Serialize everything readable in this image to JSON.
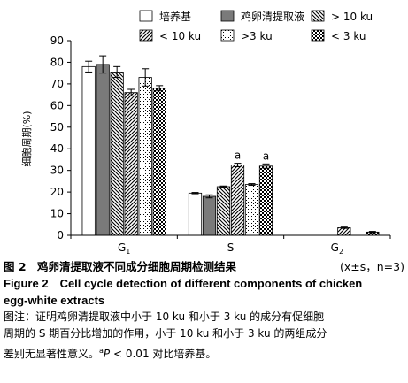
{
  "chart_data": {
    "type": "bar",
    "ylabel": "细胞周期(%)",
    "ylim": [
      0,
      90
    ],
    "yticks": [
      0,
      10,
      20,
      30,
      40,
      50,
      60,
      70,
      80,
      90
    ],
    "categories": [
      "G1",
      "S",
      "G2"
    ],
    "category_labels": [
      {
        "main": "G",
        "sub": "1"
      },
      {
        "main": "S",
        "sub": ""
      },
      {
        "main": "G",
        "sub": "2"
      }
    ],
    "legend_position": "top",
    "series": [
      {
        "name": "培养基",
        "pattern": "white",
        "values": [
          78,
          19.5,
          0
        ],
        "errors": [
          2.5,
          0.3,
          0
        ]
      },
      {
        "name": "鸡卵清提取液",
        "pattern": "gray",
        "values": [
          79,
          18,
          0
        ],
        "errors": [
          4,
          0.7,
          0
        ]
      },
      {
        "name": "> 10 ku",
        "pattern": "hatch-back",
        "values": [
          75.5,
          22.5,
          0
        ],
        "errors": [
          2.5,
          0.3,
          0
        ]
      },
      {
        "name": "< 10 ku",
        "pattern": "hatch-fwd",
        "values": [
          66,
          32.5,
          3.5
        ],
        "errors": [
          1.5,
          0.8,
          0.3
        ]
      },
      {
        "name": ">3 ku",
        "pattern": "dots",
        "values": [
          73,
          23.5,
          0
        ],
        "errors": [
          4,
          0.4,
          0
        ]
      },
      {
        "name": "< 3 ku",
        "pattern": "checker",
        "values": [
          68,
          32,
          1.5
        ],
        "errors": [
          1.2,
          1.0,
          0.3
        ]
      }
    ],
    "annotations": [
      {
        "series": 3,
        "category": 1,
        "text": "a"
      },
      {
        "series": 5,
        "category": 1,
        "text": "a"
      }
    ]
  },
  "caption": {
    "zh_title": "图 2　鸡卵清提取液不同成分细胞周期检测结果",
    "zh_stat": "(x±s，n=3)",
    "en_line1": "Figure 2　Cell cycle detection of different components of chicken",
    "en_line2": "egg-white extracts",
    "note_line1": "图注：证明鸡卵清提取液中小于 10 ku 和小于 3 ku 的成分有促细胞",
    "note_line2": "周期的 S 期百分比增加的作用，小于 10 ku 和小于 3 ku 的两组成分",
    "note_line3_pre": "差别无显著性意义。",
    "note_line3_sup": "a",
    "note_line3_p": "P",
    "note_line3_post": " < 0.01 对比培养基。"
  }
}
